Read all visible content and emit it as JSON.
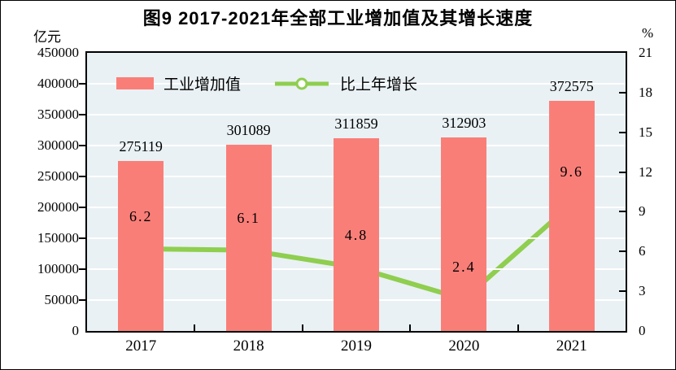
{
  "title": "图9  2017-2021年全部工业增加值及其增长速度",
  "chart_data": {
    "type": "bar+line",
    "categories": [
      "2017",
      "2018",
      "2019",
      "2020",
      "2021"
    ],
    "series": [
      {
        "name": "工业增加值",
        "type": "bar",
        "axis": "left",
        "values": [
          275119,
          301089,
          311859,
          312903,
          372575
        ],
        "labels": [
          "275119",
          "301089",
          "311859",
          "312903",
          "372575"
        ],
        "color": "#FA7E78"
      },
      {
        "name": "比上年增长",
        "type": "line",
        "axis": "right",
        "values": [
          6.2,
          6.1,
          4.8,
          2.4,
          9.6
        ],
        "labels": [
          "6.2",
          "6.1",
          "4.8",
          "2.4",
          "9.6"
        ],
        "color": "#8FCE4F",
        "marker": "circle-white-fill"
      }
    ],
    "left_axis": {
      "unit": "亿元",
      "min": 0,
      "max": 450000,
      "step": 50000,
      "ticks": [
        "0",
        "50000",
        "100000",
        "150000",
        "200000",
        "250000",
        "300000",
        "350000",
        "400000",
        "450000"
      ]
    },
    "right_axis": {
      "unit": "%",
      "min": 0,
      "max": 21,
      "step": 3,
      "ticks": [
        "0",
        "3",
        "6",
        "9",
        "12",
        "15",
        "18",
        "21"
      ]
    },
    "grid": "horizontal-white",
    "plot_background": "#E9F1F4",
    "legend_position": "top-left-inside"
  }
}
